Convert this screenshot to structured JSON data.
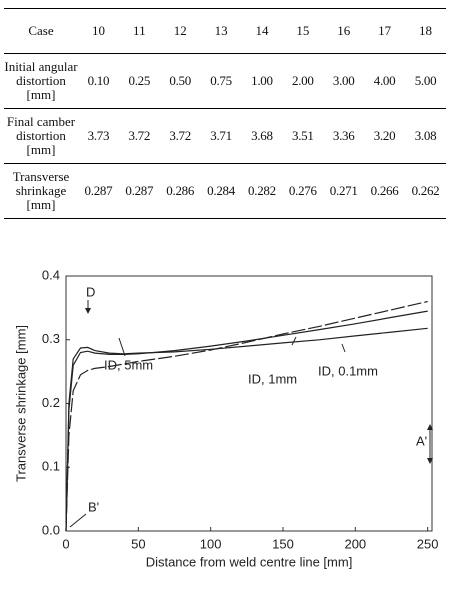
{
  "table": {
    "header": [
      "Case",
      "10",
      "11",
      "12",
      "13",
      "14",
      "15",
      "16",
      "17",
      "18"
    ],
    "rows": [
      [
        "Initial angular distortion [mm]",
        "0.10",
        "0.25",
        "0.50",
        "0.75",
        "1.00",
        "2.00",
        "3.00",
        "4.00",
        "5.00"
      ],
      [
        "Final camber distortion [mm]",
        "3.73",
        "3.72",
        "3.72",
        "3.71",
        "3.68",
        "3.51",
        "3.36",
        "3.20",
        "3.08"
      ],
      [
        "Transverse shrinkage [mm]",
        "0.287",
        "0.287",
        "0.286",
        "0.284",
        "0.282",
        "0.276",
        "0.271",
        "0.266",
        "0.262"
      ]
    ]
  },
  "chart_data": {
    "type": "line",
    "xlabel": "Distance from weld centre line [mm]",
    "ylabel": "Transverse shrinkage [mm]",
    "x": [
      0,
      2,
      5,
      10,
      15,
      20,
      30,
      40,
      50,
      75,
      100,
      125,
      150,
      175,
      200,
      225,
      250
    ],
    "series": [
      {
        "name": "ID, 0.1mm",
        "color": "#222222",
        "values": [
          0,
          0.2,
          0.27,
          0.287,
          0.288,
          0.283,
          0.279,
          0.278,
          0.279,
          0.281,
          0.285,
          0.29,
          0.295,
          0.3,
          0.306,
          0.312,
          0.318
        ]
      },
      {
        "name": "ID, 1mm",
        "color": "#222222",
        "values": [
          0,
          0.19,
          0.26,
          0.28,
          0.282,
          0.279,
          0.277,
          0.277,
          0.278,
          0.283,
          0.29,
          0.298,
          0.307,
          0.316,
          0.325,
          0.335,
          0.345
        ]
      },
      {
        "name": "ID, 5mm",
        "color": "#222222",
        "values": [
          0,
          0.15,
          0.22,
          0.245,
          0.252,
          0.255,
          0.258,
          0.262,
          0.266,
          0.274,
          0.284,
          0.296,
          0.309,
          0.321,
          0.334,
          0.347,
          0.36
        ]
      }
    ],
    "annotations": [
      "D",
      "B'",
      "A'"
    ],
    "xlim": [
      0,
      253
    ],
    "ylim": [
      0,
      0.4
    ],
    "xticks": [
      0,
      50,
      100,
      150,
      200,
      250
    ],
    "yticks": [
      {
        "value": 0,
        "label": "0.0"
      },
      0.1,
      0.2,
      0.3,
      0.4
    ]
  }
}
